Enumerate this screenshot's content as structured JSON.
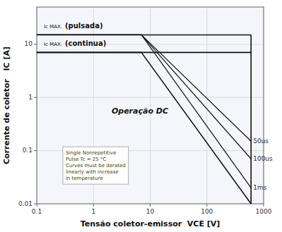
{
  "chart_data": {
    "type": "line",
    "log": true,
    "xlim": [
      0.1,
      1000
    ],
    "ylim": [
      0.01,
      50
    ],
    "xticks": [
      0.1,
      1,
      10,
      100,
      1000
    ],
    "yticks": [
      0.01,
      0.1,
      1,
      10
    ],
    "grid": true,
    "x_label": "Tensão coletor-emissor  VCE [V]",
    "y_label": "Corrente de coletor   IC [A]",
    "series": [
      {
        "color": "#111111",
        "x": [
          0.1,
          600
        ],
        "values": [
          15,
          15
        ]
      },
      {
        "color": "#111111",
        "x": [
          0.1,
          600
        ],
        "values": [
          7,
          7
        ]
      },
      {
        "color": "#111111",
        "x": [
          600,
          600
        ],
        "values": [
          0.01,
          15
        ]
      },
      {
        "color": "#111111",
        "x": [
          0.1,
          7,
          600
        ],
        "values": [
          7,
          7,
          0.01
        ]
      },
      {
        "name": "1ms",
        "color": "#111111",
        "x": [
          0.1,
          7,
          600
        ],
        "values": [
          15,
          15,
          0.02
        ]
      },
      {
        "name": "100us",
        "color": "#111111",
        "x": [
          0.1,
          7,
          600
        ],
        "values": [
          15,
          15,
          0.07
        ]
      },
      {
        "name": "50us",
        "color": "#111111",
        "x": [
          0.1,
          7,
          600
        ],
        "values": [
          15,
          15,
          0.15
        ]
      }
    ],
    "annotations": [
      "Ic MAX.",
      "(pulsada)",
      "Ic MAX.",
      "(continua)",
      "Operação DC"
    ],
    "annotation_box": [
      "Single Nonrepetitive",
      "Pulse Tc = 25 °C",
      "Curves must be derated",
      "linearly with increase",
      "in temperature"
    ]
  }
}
